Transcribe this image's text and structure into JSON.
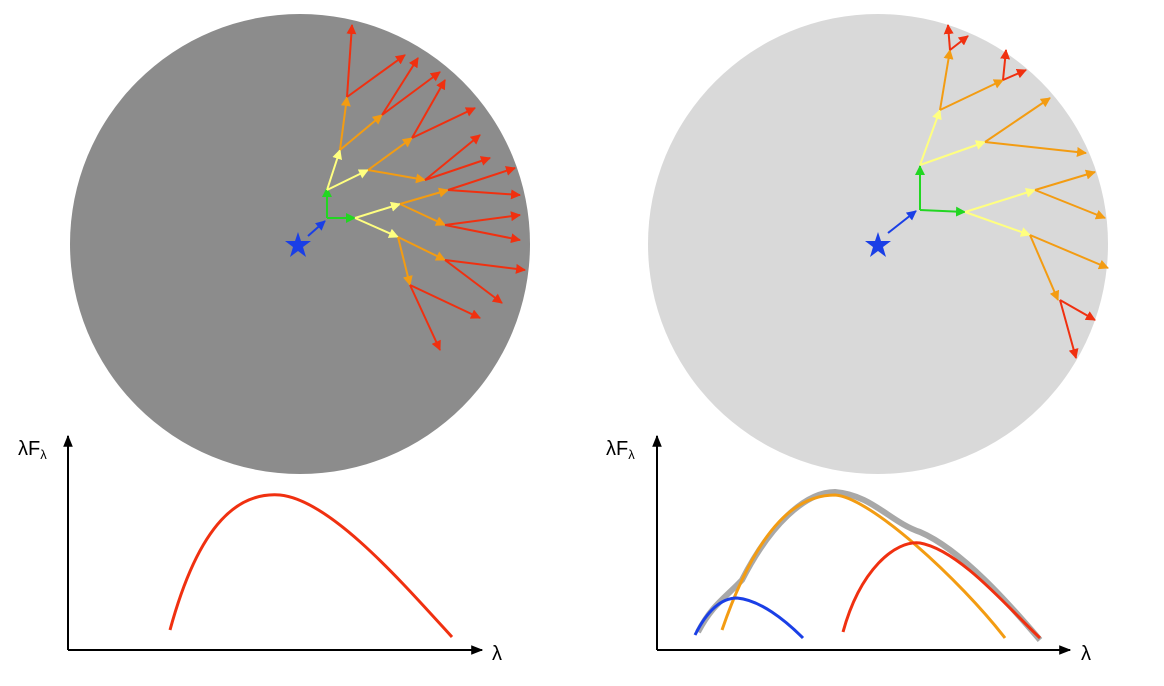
{
  "panels": [
    {
      "y_axis_label": {
        "main": "λF",
        "sub": "λ"
      },
      "x_axis_label": "λ"
    },
    {
      "y_axis_label": {
        "main": "λF",
        "sub": "λ"
      },
      "x_axis_label": "λ"
    }
  ]
}
